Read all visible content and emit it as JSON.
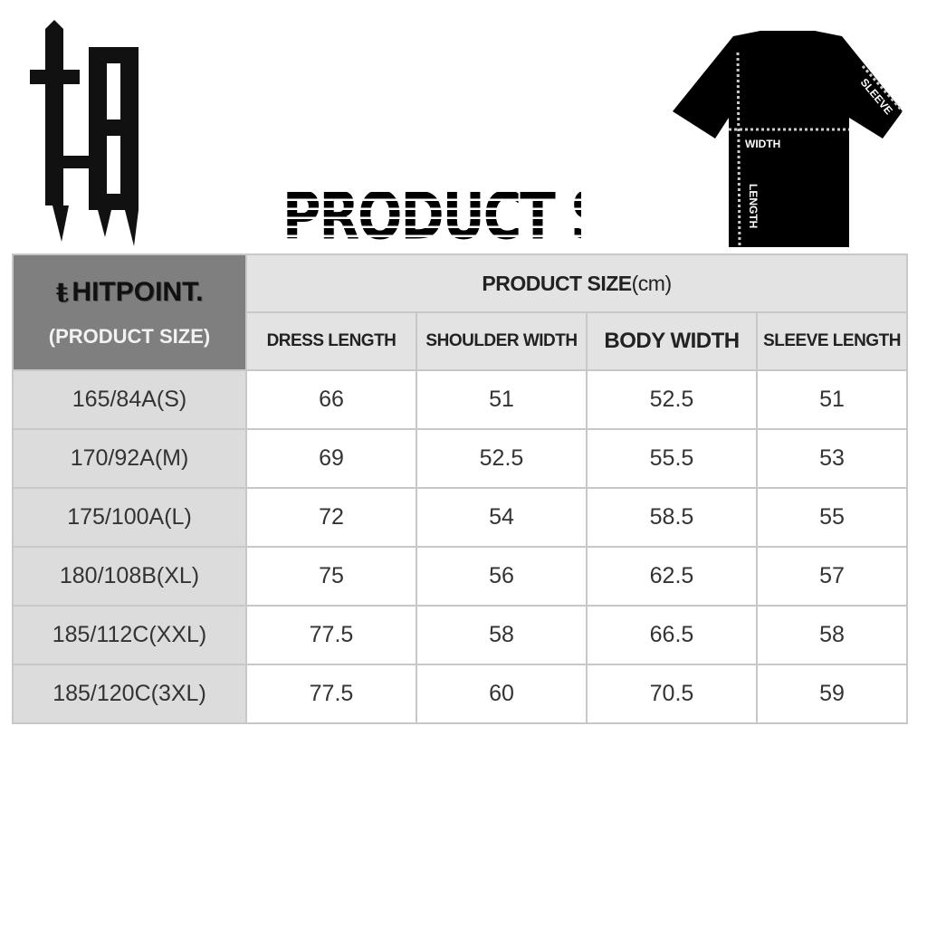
{
  "logo": {
    "text": "ts",
    "icon": "gothic-ts-logo"
  },
  "title": "PRODUCT SIZE",
  "diagram": {
    "labels": {
      "width": "WIDTH",
      "length": "LENGTH",
      "sleeve": "SLEEVE"
    },
    "icon": "t-shirt"
  },
  "table": {
    "brand": "HITPOINT.",
    "brand_sub": "(PRODUCT SIZE)",
    "group_header": "PRODUCT SIZE",
    "unit": "(cm)",
    "columns": [
      "DRESS LENGTH",
      "SHOULDER WIDTH",
      "BODY WIDTH",
      "SLEEVE LENGTH"
    ],
    "rows": [
      {
        "size": "165/84A(S)",
        "values": [
          "66",
          "51",
          "52.5",
          "51"
        ]
      },
      {
        "size": "170/92A(M)",
        "values": [
          "69",
          "52.5",
          "55.5",
          "53"
        ]
      },
      {
        "size": "175/100A(L)",
        "values": [
          "72",
          "54",
          "58.5",
          "55"
        ]
      },
      {
        "size": "180/108B(XL)",
        "values": [
          "75",
          "56",
          "62.5",
          "57"
        ]
      },
      {
        "size": "185/112C(XXL)",
        "values": [
          "77.5",
          "58",
          "66.5",
          "58"
        ]
      },
      {
        "size": "185/120C(3XL)",
        "values": [
          "77.5",
          "60",
          "70.5",
          "59"
        ]
      }
    ]
  }
}
